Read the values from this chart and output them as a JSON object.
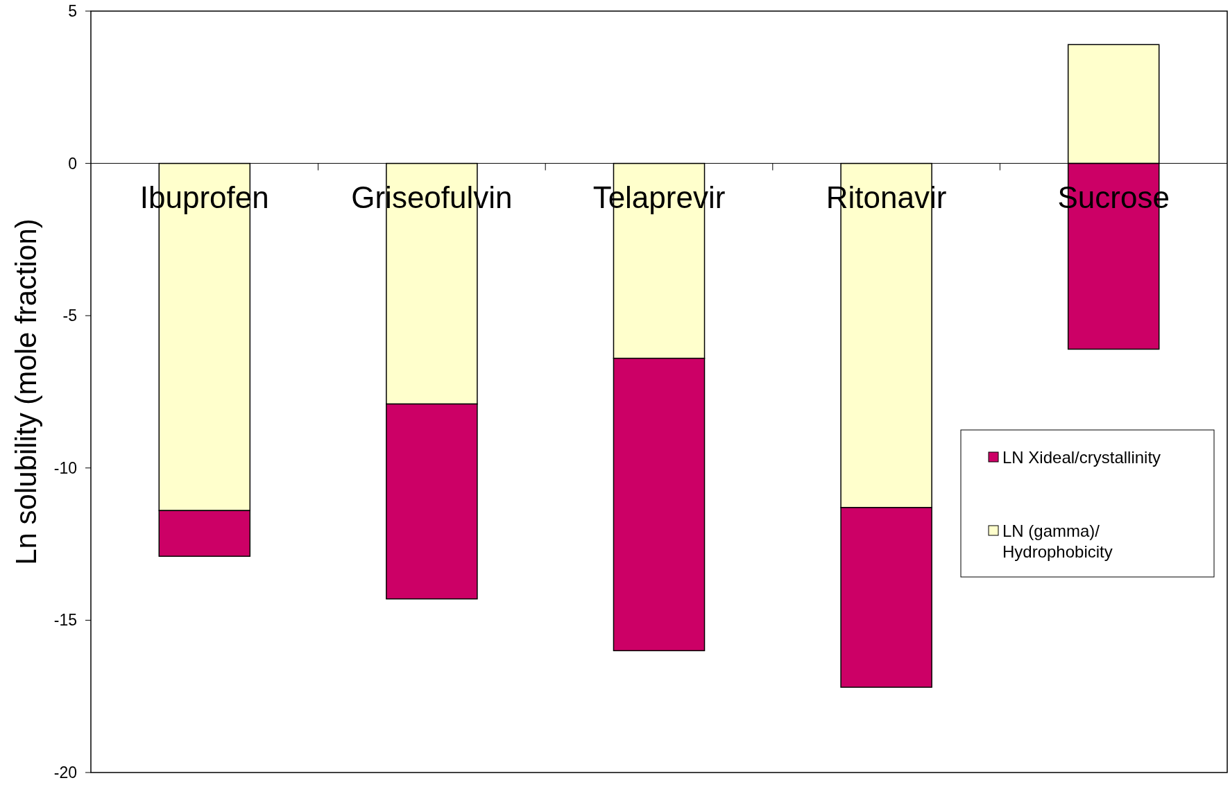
{
  "chart_data": {
    "type": "bar",
    "stacked": true,
    "ylabel": "Ln solubility (mole fraction)",
    "categories": [
      "Ibuprofen",
      "Griseofulvin",
      "Telaprevir",
      "Ritonavir",
      "Sucrose"
    ],
    "series": [
      {
        "name": "LN (gamma)/ Hydrophobicity",
        "color": "#ffffcc",
        "values": [
          -11.4,
          -7.9,
          -6.4,
          -11.3,
          3.9
        ]
      },
      {
        "name": "LN Xideal/crystallinity",
        "color": "#cc0066",
        "values": [
          -1.5,
          -6.4,
          -9.6,
          -5.9,
          -6.1
        ]
      }
    ],
    "ylim": [
      -20,
      5
    ],
    "yticks": [
      -20,
      -15,
      -10,
      -5,
      0,
      5
    ],
    "grid": false,
    "legend": "right"
  }
}
